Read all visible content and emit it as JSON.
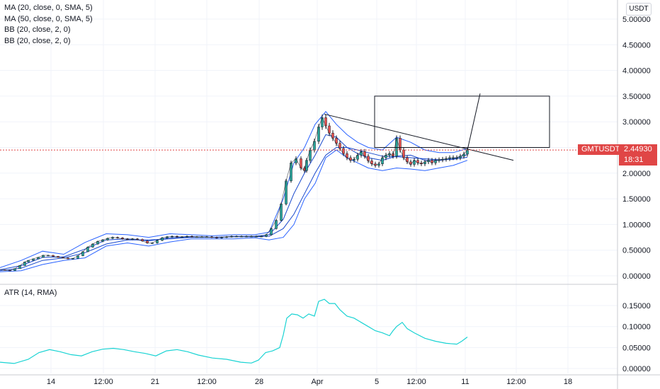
{
  "legend": {
    "items": [
      "MA (20, close, 0, SMA, 5)",
      "MA (50, close, 0, SMA, 5)",
      "BB (20, close, 2, 0)",
      "BB (20, close, 2, 0)"
    ]
  },
  "currency": "USDT",
  "symbol": "GMTUSDT",
  "last_price": "2.44930",
  "countdown": "18:31",
  "atr_legend": "ATR (14, RMA)",
  "colors": {
    "candle_up": "#26a69a",
    "candle_down": "#ef5350",
    "ma": "#1848cc",
    "bands": "#2962ff",
    "atr": "#19d3d3",
    "drawing": "#131722",
    "price_tag": "#e04646",
    "grid": "#f0f3fa"
  },
  "chart_data": [
    {
      "type": "line",
      "title": "GMTUSDT",
      "description_series": "price",
      "price_axis_labels": [
        "5.00000",
        "4.50000",
        "4.00000",
        "3.50000",
        "3.00000",
        "2.50000",
        "2.00000",
        "1.50000",
        "1.00000",
        "0.50000",
        "0.00000"
      ],
      "time_axis_labels": [
        "14",
        "12:00",
        "21",
        "12:00",
        "28",
        "Apr",
        "5",
        "12:00",
        "11",
        "12:00",
        "18"
      ],
      "ylim": [
        -0.05,
        5.2
      ],
      "grid": true,
      "series": [
        {
          "name": "GMTUSDT",
          "x": [
            0,
            7,
            14,
            21,
            28,
            35,
            40,
            47,
            54,
            61,
            68,
            75,
            82,
            89,
            96,
            103,
            110,
            117,
            124,
            131,
            138,
            145,
            152,
            159,
            166,
            173,
            180,
            187,
            194,
            201,
            208,
            215,
            222,
            229,
            236,
            243,
            250,
            257,
            264,
            271,
            278,
            285,
            292,
            299,
            306,
            313,
            320,
            327,
            334,
            341,
            348,
            355,
            362,
            369,
            376,
            383,
            390,
            397,
            404,
            411,
            418,
            425,
            430,
            433,
            438,
            444,
            450,
            455,
            460,
            465,
            470,
            475,
            480,
            485,
            490,
            495,
            500,
            505,
            510,
            515,
            520,
            525,
            530,
            535,
            540,
            545,
            550,
            555,
            560,
            565,
            570,
            575,
            580,
            585,
            590,
            595,
            600,
            605,
            610,
            615,
            620,
            625,
            630,
            635,
            640,
            645,
            650,
            655,
            660
          ],
          "values": [
            0.12,
            0.11,
            0.1,
            0.14,
            0.2,
            0.27,
            0.3,
            0.33,
            0.36,
            0.4,
            0.4,
            0.38,
            0.36,
            0.35,
            0.33,
            0.34,
            0.39,
            0.47,
            0.56,
            0.62,
            0.67,
            0.7,
            0.73,
            0.75,
            0.74,
            0.72,
            0.71,
            0.72,
            0.71,
            0.68,
            0.64,
            0.64,
            0.69,
            0.74,
            0.76,
            0.77,
            0.76,
            0.76,
            0.77,
            0.76,
            0.76,
            0.76,
            0.76,
            0.75,
            0.74,
            0.75,
            0.76,
            0.77,
            0.77,
            0.77,
            0.77,
            0.77,
            0.77,
            0.77,
            0.8,
            0.92,
            1.08,
            1.4,
            1.85,
            2.2,
            2.28,
            2.1,
            2.05,
            2.25,
            2.45,
            2.62,
            2.9,
            3.08,
            2.92,
            2.78,
            2.68,
            2.58,
            2.48,
            2.38,
            2.3,
            2.25,
            2.27,
            2.35,
            2.42,
            2.33,
            2.24,
            2.18,
            2.15,
            2.18,
            2.3,
            2.35,
            2.38,
            2.33,
            2.68,
            2.45,
            2.3,
            2.22,
            2.17,
            2.25,
            2.2,
            2.18,
            2.22,
            2.25,
            2.2,
            2.25,
            2.26,
            2.27,
            2.28,
            2.3,
            2.3,
            2.3,
            2.33,
            2.37,
            2.45
          ]
        },
        {
          "name": "MA (20, close, 0, SMA, 5)",
          "x": [
            0,
            30,
            60,
            90,
            120,
            150,
            180,
            210,
            240,
            270,
            300,
            330,
            360,
            380,
            400,
            415,
            430,
            445,
            460,
            475,
            490,
            505,
            520,
            540,
            560,
            580,
            600,
            620,
            640,
            660
          ],
          "values": [
            0.12,
            0.2,
            0.36,
            0.37,
            0.52,
            0.7,
            0.72,
            0.68,
            0.74,
            0.76,
            0.75,
            0.76,
            0.77,
            0.8,
            1.1,
            1.6,
            2.0,
            2.35,
            2.75,
            2.7,
            2.5,
            2.38,
            2.3,
            2.25,
            2.33,
            2.35,
            2.25,
            2.25,
            2.28,
            2.36
          ]
        },
        {
          "name": "MA (50, close, 0, SMA, 5)",
          "x": [
            0,
            30,
            60,
            90,
            120,
            150,
            180,
            210,
            240,
            270,
            300,
            330,
            360,
            380,
            400,
            415,
            430,
            445,
            460,
            475,
            490,
            505,
            520,
            540,
            560,
            580,
            600,
            620,
            640,
            660
          ],
          "values": [
            0.1,
            0.15,
            0.3,
            0.35,
            0.45,
            0.62,
            0.7,
            0.7,
            0.72,
            0.75,
            0.75,
            0.76,
            0.76,
            0.77,
            0.92,
            1.2,
            1.6,
            2.0,
            2.35,
            2.5,
            2.5,
            2.45,
            2.4,
            2.33,
            2.32,
            2.3,
            2.28,
            2.26,
            2.27,
            2.31
          ]
        },
        {
          "name": "BB upper",
          "x": [
            0,
            30,
            60,
            90,
            120,
            150,
            180,
            210,
            240,
            270,
            300,
            330,
            360,
            380,
            400,
            415,
            430,
            445,
            460,
            475,
            490,
            505,
            520,
            540,
            560,
            580,
            600,
            620,
            640,
            660
          ],
          "values": [
            0.16,
            0.3,
            0.48,
            0.42,
            0.65,
            0.82,
            0.8,
            0.75,
            0.82,
            0.8,
            0.78,
            0.8,
            0.8,
            0.85,
            1.5,
            2.2,
            2.5,
            2.95,
            3.2,
            2.95,
            2.75,
            2.6,
            2.5,
            2.45,
            2.7,
            2.6,
            2.45,
            2.4,
            2.4,
            2.48
          ]
        },
        {
          "name": "BB lower",
          "x": [
            0,
            30,
            60,
            90,
            120,
            150,
            180,
            210,
            240,
            270,
            300,
            330,
            360,
            380,
            400,
            415,
            430,
            445,
            460,
            475,
            490,
            505,
            520,
            540,
            560,
            580,
            600,
            620,
            640,
            660
          ],
          "values": [
            0.08,
            0.1,
            0.22,
            0.3,
            0.35,
            0.58,
            0.64,
            0.58,
            0.66,
            0.72,
            0.72,
            0.72,
            0.74,
            0.7,
            0.75,
            1.0,
            1.5,
            1.8,
            2.3,
            2.45,
            2.3,
            2.2,
            2.1,
            2.05,
            2.1,
            2.08,
            2.05,
            2.1,
            2.15,
            2.25
          ]
        }
      ],
      "annotations": {
        "trendline": [
          [
            458,
            3.15
          ],
          [
            725,
            2.25
          ]
        ],
        "rectangle": {
          "x": [
            529,
            776
          ],
          "y": [
            2.5,
            3.5
          ]
        },
        "projection": [
          [
            660,
            2.45
          ],
          [
            678,
            3.55
          ]
        ],
        "last_price_line": 2.4493
      }
    },
    {
      "type": "line",
      "title": "ATR (14, RMA)",
      "price_axis_labels": [
        "0.15000",
        "0.10000",
        "0.05000",
        "0.00000"
      ],
      "ylim": [
        -0.003,
        0.185
      ],
      "grid": true,
      "series": [
        {
          "name": "ATR (14, RMA)",
          "x": [
            0,
            20,
            40,
            55,
            70,
            85,
            100,
            115,
            130,
            145,
            160,
            175,
            190,
            205,
            220,
            235,
            250,
            265,
            280,
            300,
            320,
            340,
            355,
            365,
            375,
            385,
            395,
            400,
            405,
            412,
            420,
            428,
            436,
            444,
            450,
            458,
            465,
            473,
            480,
            490,
            500,
            510,
            520,
            530,
            540,
            550,
            555,
            560,
            568,
            575,
            585,
            600,
            615,
            630,
            645,
            652,
            660
          ],
          "values": [
            0.015,
            0.012,
            0.022,
            0.038,
            0.045,
            0.04,
            0.033,
            0.03,
            0.04,
            0.046,
            0.048,
            0.045,
            0.04,
            0.036,
            0.03,
            0.042,
            0.045,
            0.04,
            0.032,
            0.025,
            0.022,
            0.015,
            0.013,
            0.02,
            0.038,
            0.042,
            0.05,
            0.08,
            0.12,
            0.13,
            0.128,
            0.12,
            0.13,
            0.125,
            0.16,
            0.165,
            0.155,
            0.155,
            0.14,
            0.125,
            0.12,
            0.11,
            0.1,
            0.09,
            0.085,
            0.078,
            0.09,
            0.1,
            0.11,
            0.095,
            0.085,
            0.072,
            0.065,
            0.06,
            0.058,
            0.065,
            0.075
          ]
        }
      ]
    }
  ]
}
